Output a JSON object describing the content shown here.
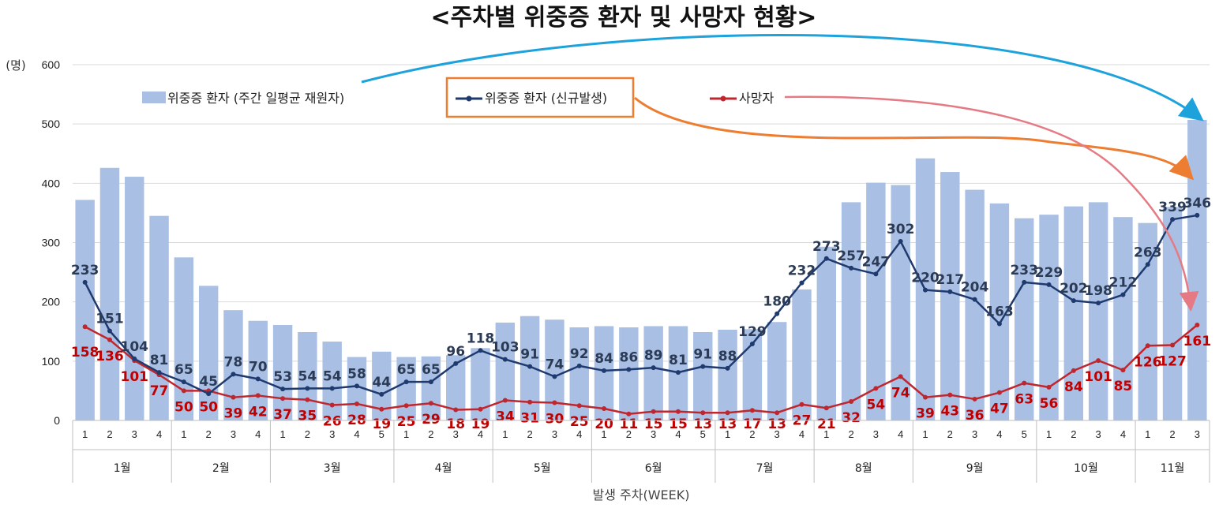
{
  "chart_data": {
    "type": "bar",
    "title": "<주차별 위중증 환자 및 사망자 현황>",
    "ylabel": "(명)",
    "xlabel": "발생 주차(WEEK)",
    "ylim": [
      0,
      600
    ],
    "yticks": [
      "0",
      "100",
      "200",
      "300",
      "400",
      "500",
      "600"
    ],
    "grid": true,
    "legend_position": "top",
    "months": [
      {
        "label": "1월",
        "weeks": 4
      },
      {
        "label": "2월",
        "weeks": 4
      },
      {
        "label": "3월",
        "weeks": 5
      },
      {
        "label": "4월",
        "weeks": 4
      },
      {
        "label": "5월",
        "weeks": 4
      },
      {
        "label": "6월",
        "weeks": 5
      },
      {
        "label": "7월",
        "weeks": 4
      },
      {
        "label": "8월",
        "weeks": 4
      },
      {
        "label": "9월",
        "weeks": 5
      },
      {
        "label": "10월",
        "weeks": 4
      },
      {
        "label": "11월",
        "weeks": 3
      }
    ],
    "categories": [
      "1",
      "2",
      "3",
      "4",
      "1",
      "2",
      "3",
      "4",
      "1",
      "2",
      "3",
      "4",
      "5",
      "1",
      "2",
      "3",
      "4",
      "1",
      "2",
      "3",
      "4",
      "1",
      "2",
      "3",
      "4",
      "5",
      "1",
      "2",
      "3",
      "4",
      "1",
      "2",
      "3",
      "4",
      "1",
      "2",
      "3",
      "4",
      "5",
      "1",
      "2",
      "3",
      "4",
      "1",
      "2",
      "3"
    ],
    "series": [
      {
        "name": "위중증 환자 (주간 일평균 재원자)",
        "kind": "bar",
        "color": "#a9bfe3",
        "values": [
          372,
          426,
          411,
          345,
          275,
          227,
          186,
          168,
          161,
          149,
          133,
          107,
          116,
          107,
          108,
          110,
          122,
          165,
          176,
          170,
          157,
          159,
          157,
          159,
          159,
          149,
          153,
          154,
          166,
          221,
          293,
          368,
          401,
          397,
          442,
          419,
          389,
          366,
          341,
          347,
          361,
          368,
          343,
          333,
          360,
          507
        ]
      },
      {
        "name": "위중증 환자 (신규발생)",
        "kind": "line",
        "color": "#1f3a6e",
        "values": [
          233,
          151,
          104,
          81,
          65,
          45,
          78,
          70,
          53,
          54,
          54,
          58,
          44,
          65,
          65,
          96,
          118,
          103,
          91,
          74,
          92,
          84,
          86,
          89,
          81,
          91,
          88,
          129,
          180,
          232,
          273,
          257,
          247,
          302,
          220,
          217,
          204,
          163,
          233,
          229,
          202,
          198,
          212,
          263,
          339,
          346
        ]
      },
      {
        "name": "사망자",
        "kind": "line",
        "color": "#c0262d",
        "values": [
          158,
          136,
          101,
          77,
          50,
          50,
          39,
          42,
          37,
          35,
          26,
          28,
          19,
          25,
          29,
          18,
          19,
          34,
          31,
          30,
          25,
          20,
          11,
          15,
          15,
          13,
          13,
          17,
          13,
          27,
          21,
          32,
          54,
          74,
          39,
          43,
          36,
          47,
          63,
          56,
          84,
          101,
          85,
          126,
          127,
          161
        ]
      }
    ]
  }
}
